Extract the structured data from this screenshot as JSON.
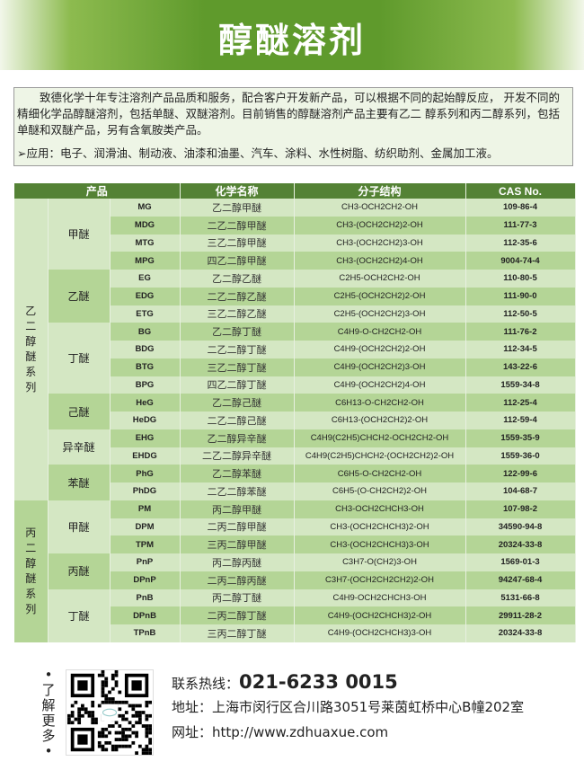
{
  "title": "醇醚溶剂",
  "intro": {
    "text": "致德化学十年专注溶剂产品品质和服务，配合客户开发新产品，可以根据不同的起始醇反应， 开发不同的精细化学品醇醚溶剂，包括单醚、双醚溶剂。目前销售的醇醚溶剂产品主要有乙二 醇系列和丙二醇系列，包括单醚和双醚产品，另有含氧胺类产品。",
    "application": "➢应用：电子、润滑油、制动液、油漆和油墨、汽车、涂料、水性树脂、纺织助剂、金属加工液。"
  },
  "table": {
    "headers": [
      "产品",
      "化学名称",
      "分子结构",
      "CAS No."
    ],
    "series": [
      {
        "label": "乙二醇醚系列",
        "groups": [
          {
            "label": "甲醚",
            "rows": [
              [
                "MG",
                "乙二醇甲醚",
                "CH3-OCH2CH2-OH",
                "109-86-4"
              ],
              [
                "MDG",
                "二乙二醇甲醚",
                "CH3-(OCH2CH2)2-OH",
                "111-77-3"
              ],
              [
                "MTG",
                "三乙二醇甲醚",
                "CH3-(OCH2CH2)3-OH",
                "112-35-6"
              ],
              [
                "MPG",
                "四乙二醇甲醚",
                "CH3-(OCH2CH2)4-OH",
                "9004-74-4"
              ]
            ]
          },
          {
            "label": "乙醚",
            "rows": [
              [
                "EG",
                "乙二醇乙醚",
                "C2H5-OCH2CH2-OH",
                "110-80-5"
              ],
              [
                "EDG",
                "二乙二醇乙醚",
                "C2H5-(OCH2CH2)2-OH",
                "111-90-0"
              ],
              [
                "ETG",
                "三乙二醇乙醚",
                "C2H5-(OCH2CH2)3-OH",
                "112-50-5"
              ]
            ]
          },
          {
            "label": "丁醚",
            "rows": [
              [
                "BG",
                "乙二醇丁醚",
                "C4H9-O-CH2CH2-OH",
                "111-76-2"
              ],
              [
                "BDG",
                "二乙二醇丁醚",
                "C4H9-(OCH2CH2)2-OH",
                "112-34-5"
              ],
              [
                "BTG",
                "三乙二醇丁醚",
                "C4H9-(OCH2CH2)3-OH",
                "143-22-6"
              ],
              [
                "BPG",
                "四乙二醇丁醚",
                "C4H9-(OCH2CH2)4-OH",
                "1559-34-8"
              ]
            ]
          },
          {
            "label": "己醚",
            "rows": [
              [
                "HeG",
                "乙二醇己醚",
                "C6H13-O-CH2CH2-OH",
                "112-25-4"
              ],
              [
                "HeDG",
                "二乙二醇己醚",
                "C6H13-(OCH2CH2)2-OH",
                "112-59-4"
              ]
            ]
          },
          {
            "label": "异辛醚",
            "rows": [
              [
                "EHG",
                "乙二醇异辛醚",
                "C4H9(C2H5)CHCH2-OCH2CH2-OH",
                "1559-35-9"
              ],
              [
                "EHDG",
                "二乙二醇异辛醚",
                "C4H9(C2H5)CHCH2-(OCH2CH2)2-OH",
                "1559-36-0"
              ]
            ]
          },
          {
            "label": "苯醚",
            "rows": [
              [
                "PhG",
                "乙二醇苯醚",
                "C6H5-O-CH2CH2-OH",
                "122-99-6"
              ],
              [
                "PhDG",
                "二乙二醇苯醚",
                "C6H5-(O-CH2CH2)2-OH",
                "104-68-7"
              ]
            ]
          }
        ]
      },
      {
        "label": "丙二醇醚系列",
        "groups": [
          {
            "label": "甲醚",
            "rows": [
              [
                "PM",
                "丙二醇甲醚",
                "CH3-OCH2CHCH3-OH",
                "107-98-2"
              ],
              [
                "DPM",
                "二丙二醇甲醚",
                "CH3-(OCH2CHCH3)2-OH",
                "34590-94-8"
              ],
              [
                "TPM",
                "三丙二醇甲醚",
                "CH3-(OCH2CHCH3)3-OH",
                "20324-33-8"
              ]
            ]
          },
          {
            "label": "丙醚",
            "rows": [
              [
                "PnP",
                "丙二醇丙醚",
                "C3H7-O(CH2)3-OH",
                "1569-01-3"
              ],
              [
                "DPnP",
                "二丙二醇丙醚",
                "C3H7-(OCH2CH2CH2)2-OH",
                "94247-68-4"
              ]
            ]
          },
          {
            "label": "丁醚",
            "rows": [
              [
                "PnB",
                "丙二醇丁醚",
                "C4H9-OCH2CHCH3-OH",
                "5131-66-8"
              ],
              [
                "DPnB",
                "二丙二醇丁醚",
                "C4H9-(OCH2CHCH3)2-OH",
                "29911-28-2"
              ],
              [
                "TPnB",
                "三丙二醇丁醚",
                "C4H9-(OCH2CHCH3)3-OH",
                "20324-33-8"
              ]
            ]
          }
        ]
      }
    ]
  },
  "footer": {
    "learn_more": "•了解更多•",
    "phone_label": "联系热线：",
    "phone": "021-6233 0015",
    "address": "地址：上海市闵行区合川路3051号莱茵虹桥中心B幢202室",
    "website": "网址：http://www.zdhuaxue.com"
  },
  "colors": {
    "header_green": "#548235",
    "row_light": "#d4e7c3",
    "row_dark": "#b4d596"
  }
}
